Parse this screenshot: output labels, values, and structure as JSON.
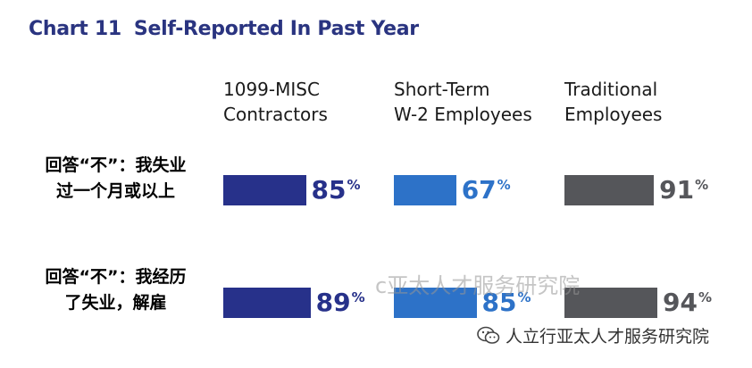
{
  "title": {
    "number": "Chart 11",
    "text": "Self-Reported In Past Year"
  },
  "colors": {
    "contractors": "#27318a",
    "short_term": "#2d72c8",
    "traditional": "#55565a",
    "title": "#2a3480"
  },
  "chart_data": {
    "type": "bar",
    "orientation": "horizontal",
    "title": "Chart 11 Self-Reported In Past Year",
    "categories": [
      "回答“不”：我失业过一个月或以上",
      "回答“不”：我经历了失业，解雇"
    ],
    "series": [
      {
        "name": "1099-MISC Contractors",
        "values": [
          85,
          89
        ],
        "color": "#27318a"
      },
      {
        "name": "Short-Term W-2 Employees",
        "values": [
          67,
          85
        ],
        "color": "#2d72c8"
      },
      {
        "name": "Traditional Employees",
        "values": [
          91,
          94
        ],
        "color": "#55565a"
      }
    ],
    "unit": "%",
    "xlim": [
      0,
      100
    ]
  },
  "headers": [
    {
      "line1": "1099-MISC",
      "line2": "Contractors"
    },
    {
      "line1": "Short-Term",
      "line2": "W-2 Employees"
    },
    {
      "line1": "Traditional",
      "line2": "Employees"
    }
  ],
  "row_labels": [
    {
      "line1": "回答“不”：我失业",
      "line2": "过一个月或以上"
    },
    {
      "line1": "回答“不”：我经历",
      "line2": "了失业，解雇"
    }
  ],
  "value_labels": [
    [
      "85",
      "67",
      "91"
    ],
    [
      "89",
      "85",
      "94"
    ]
  ],
  "percent_sign": "%",
  "watermark": "c亚太人才服务研究院",
  "footer_brand": "人立行亚太人才服务研究院"
}
